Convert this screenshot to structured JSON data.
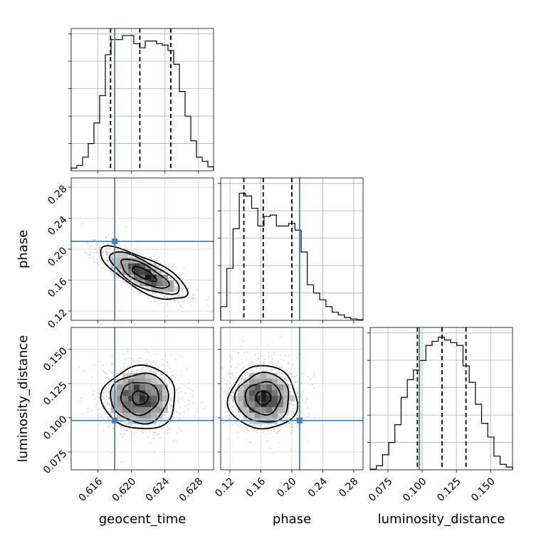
{
  "chart_data": {
    "type": "corner",
    "parameters": [
      "geocent_time",
      "phase",
      "luminosity_distance"
    ],
    "colors": {
      "truth": "#4682b4",
      "hist": "#000000",
      "grid": "#b0b0b0",
      "points": "#9a9a9a"
    },
    "ranges": {
      "geocent_time": [
        0.6128,
        0.6298
      ],
      "phase": [
        0.108,
        0.292
      ],
      "luminosity_distance": [
        0.062,
        0.166
      ]
    },
    "ticks": {
      "geocent_time": {
        "values": [
          0.616,
          0.62,
          0.624,
          0.628
        ],
        "labels": [
          "0.616",
          "0.620",
          "0.624",
          "0.628"
        ]
      },
      "phase": {
        "values": [
          0.12,
          0.16,
          0.2,
          0.24,
          0.28
        ],
        "labels": [
          "0.12",
          "0.16",
          "0.20",
          "0.24",
          "0.28"
        ]
      },
      "luminosity_distance": {
        "values": [
          0.075,
          0.1,
          0.125,
          0.15
        ],
        "labels": [
          "0.075",
          "0.100",
          "0.125",
          "0.150"
        ]
      }
    },
    "truths": {
      "geocent_time": 0.618,
      "phase": 0.21,
      "luminosity_distance": 0.098
    },
    "quantiles": {
      "geocent_time": [
        0.6175,
        0.621,
        0.6247
      ],
      "phase": [
        0.138,
        0.163,
        0.2
      ],
      "luminosity_distance": [
        0.0965,
        0.1145,
        0.132
      ]
    },
    "histograms": {
      "geocent_time": [
        0.02,
        0.04,
        0.1,
        0.2,
        0.35,
        0.55,
        0.85,
        0.96,
        0.96,
        0.99,
        0.99,
        0.93,
        0.9,
        0.95,
        0.95,
        0.93,
        0.92,
        0.88,
        0.78,
        0.58,
        0.4,
        0.22,
        0.1,
        0.07,
        0.03
      ],
      "phase": [
        0.1,
        0.38,
        0.67,
        0.93,
        0.91,
        0.82,
        0.69,
        0.76,
        0.77,
        0.69,
        0.69,
        0.71,
        0.66,
        0.5,
        0.26,
        0.2,
        0.15,
        0.1,
        0.06,
        0.04,
        0.02,
        0.01,
        0.005
      ],
      "luminosity_distance": [
        0.005,
        0.03,
        0.11,
        0.2,
        0.33,
        0.53,
        0.66,
        0.73,
        0.8,
        0.91,
        0.94,
        0.97,
        0.95,
        0.93,
        0.91,
        0.76,
        0.64,
        0.48,
        0.34,
        0.24,
        0.1,
        0.04,
        0.02
      ]
    },
    "axis_labels": {
      "x": [
        "geocent_time",
        "phase",
        "luminosity_distance"
      ],
      "y": [
        "phase",
        "luminosity_distance"
      ]
    },
    "grid": true,
    "contour_levels": 4
  }
}
